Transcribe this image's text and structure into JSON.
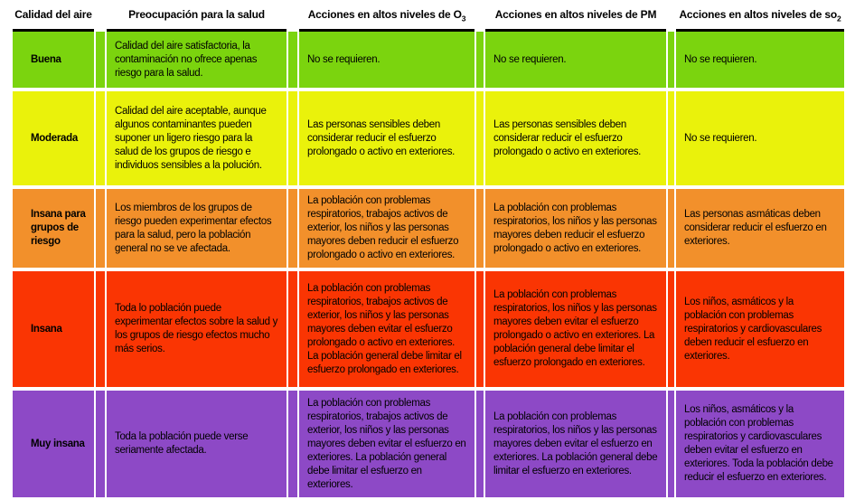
{
  "page": {
    "background_color": "#ffffff",
    "text_color": "#000000"
  },
  "table": {
    "columns": [
      {
        "id": "calidad",
        "label": "Calidad del aire"
      },
      {
        "id": "salud",
        "label": "Preocupación para la salud"
      },
      {
        "id": "o3",
        "label": "Acciones en altos niveles de O",
        "subscript": "3"
      },
      {
        "id": "pm",
        "label": "Acciones en altos niveles de PM"
      },
      {
        "id": "so2",
        "label": "Acciones en altos niveles de so",
        "subscript": "2"
      }
    ],
    "rows": [
      {
        "level": "Buena",
        "color": "#7BD40E",
        "health": "Calidad del aire satisfactoria, la contaminación no ofrece apenas riesgo para la salud.",
        "o3": "No se requieren.",
        "pm": "No se requieren.",
        "so2": "No se requieren."
      },
      {
        "level": "Moderada",
        "color": "#EAF20B",
        "health": "Calidad del aire aceptable, aunque algunos contaminantes pueden suponer un ligero riesgo para la salud de los grupos de riesgo e individuos sensibles a la polución.",
        "o3": "Las personas sensibles deben considerar reducir el esfuerzo prolongado o activo en exteriores.",
        "pm": "Las personas sensibles deben considerar reducir el esfuerzo prolongado o activo en exteriores.",
        "so2": "No se requieren."
      },
      {
        "level": "Insana para grupos de riesgo",
        "color": "#F2902B",
        "health": "Los miembros de los grupos de riesgo pueden experimentar efectos para la salud, pero la población general no se ve afectada.",
        "o3": "La población con problemas respiratorios, trabajos activos de exterior, los niños y las personas mayores deben reducir el esfuerzo prolongado o activo en exteriores.",
        "pm": "La población con problemas respiratorios, los niños y las personas mayores deben reducir el esfuerzo prolongado o activo en exteriores.",
        "so2": "Las personas asmáticas deben considerar reducir el esfuerzo en exteriores."
      },
      {
        "level": "Insana",
        "color": "#FA3503",
        "health": "Toda lo población puede experimentar efectos sobre la salud y los grupos de riesgo efectos mucho más serios.",
        "o3": "La población con problemas respiratorios, trabajos activos de exterior, los niños y las personas mayores deben evitar el esfuerzo prolongado o activo en exteriores. La población general debe limitar el esfuerzo prolongado en exteriores.",
        "pm": "La población con problemas respiratorios, los niños y las personas mayores deben evitar el esfuerzo prolongado o activo en exteriores. La población general debe limitar el esfuerzo prolongado en exteriores.",
        "so2": "Los niños, asmáticos y la población con problemas respiratorios y cardiovasculares deben reducir el esfuerzo en exteriores."
      },
      {
        "level": "Muy insana",
        "color": "#8D49C6",
        "health": "Toda la población puede verse seriamente afectada.",
        "o3": "La población con problemas respiratorios, trabajos activos de exterior, los niños y las personas mayores deben evitar el esfuerzo en exteriores. La población general debe limitar el esfuerzo en exteriores.",
        "pm": "La población con problemas respiratorios, los niños y las personas mayores deben evitar el esfuerzo en exteriores. La población general debe limitar el esfuerzo en exteriores.",
        "so2": "Los niños, asmáticos y la población con problemas respiratorios y cardiovasculares deben evitar el esfuerzo en exteriores. Toda la población debe reducir el esfuerzo en exteriores."
      }
    ]
  }
}
